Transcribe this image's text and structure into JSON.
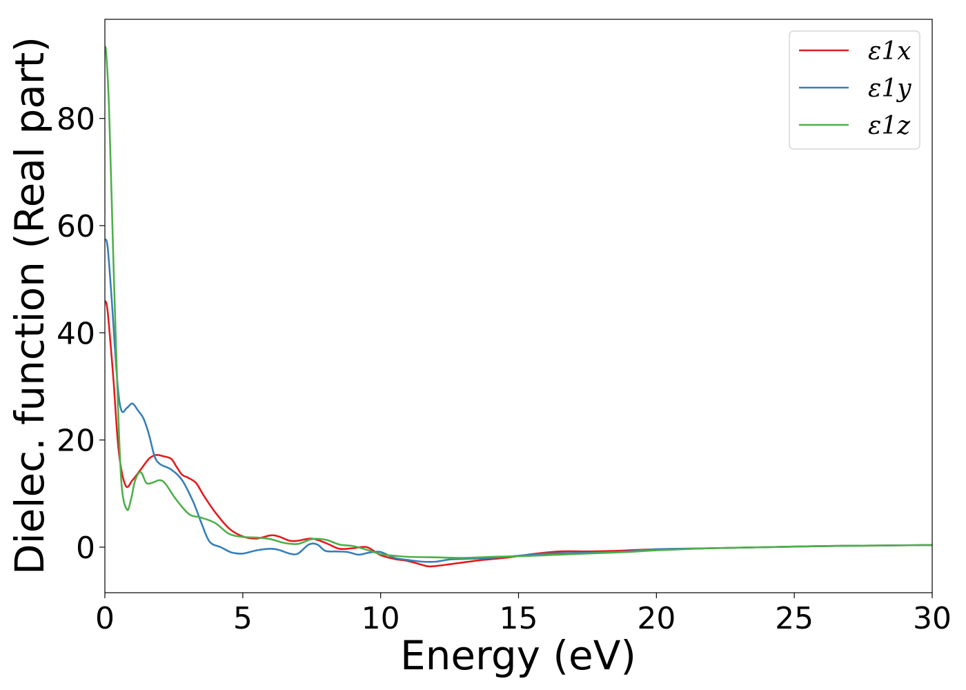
{
  "chart_data": {
    "type": "line",
    "xlabel": "Energy (eV)",
    "ylabel": "Dielec. function (Real part)",
    "xlim": [
      0,
      30
    ],
    "ylim": [
      -8.5,
      98.5
    ],
    "xticks": [
      0,
      5,
      10,
      15,
      20,
      25,
      30
    ],
    "yticks": [
      0,
      20,
      40,
      60,
      80
    ],
    "grid": false,
    "legend": "top-right",
    "series": [
      {
        "name": "ε1x",
        "color": "#e41a1c",
        "x": [
          0,
          0.1,
          0.3,
          0.5,
          0.75,
          1.0,
          1.3,
          1.6,
          1.85,
          2.1,
          2.4,
          2.6,
          2.8,
          3.0,
          3.3,
          3.6,
          4.0,
          4.5,
          5.0,
          5.5,
          6.0,
          6.3,
          6.7,
          7.0,
          7.5,
          8.0,
          8.5,
          9.0,
          9.5,
          10.0,
          10.5,
          11.0,
          11.5,
          11.8,
          12.5,
          13.5,
          14.5,
          15.5,
          16.5,
          17.5,
          18.5,
          20,
          22,
          24,
          26,
          28,
          30
        ],
        "y": [
          46,
          44,
          32,
          18,
          11.5,
          12.5,
          14.5,
          16.5,
          17.2,
          17,
          16.5,
          15,
          13.5,
          13,
          12,
          9.5,
          6.5,
          3.5,
          2,
          1.6,
          2.2,
          2,
          1.2,
          1.2,
          1.6,
          0.8,
          -0.3,
          -0.2,
          0,
          -1.5,
          -2.2,
          -2.6,
          -3.3,
          -3.6,
          -3.2,
          -2.5,
          -2,
          -1.3,
          -0.8,
          -0.8,
          -0.7,
          -0.4,
          -0.2,
          0,
          0.2,
          0.3,
          0.4
        ]
      },
      {
        "name": "ε1y",
        "color": "#377eb8",
        "x": [
          0,
          0.1,
          0.25,
          0.45,
          0.6,
          0.8,
          1.0,
          1.2,
          1.4,
          1.6,
          1.8,
          2.0,
          2.4,
          2.8,
          3.2,
          3.5,
          3.8,
          4.2,
          4.6,
          5.0,
          5.5,
          6.0,
          6.3,
          6.7,
          7.0,
          7.4,
          7.7,
          8.0,
          8.4,
          8.8,
          9.2,
          9.6,
          10.0,
          10.5,
          11.0,
          11.5,
          12.0,
          12.5,
          13.0,
          14.0,
          15.0,
          16.0,
          17.0,
          18.0,
          19.0,
          20,
          22,
          24,
          26,
          28,
          30
        ],
        "y": [
          57.5,
          56,
          46,
          31,
          25.5,
          26,
          26.8,
          25.5,
          24,
          21,
          17,
          15.5,
          14.5,
          12.5,
          8.5,
          4.5,
          1,
          0,
          -1,
          -1.2,
          -0.6,
          -0.3,
          -0.5,
          -1.2,
          -1.2,
          0.5,
          0.5,
          -0.7,
          -0.8,
          -0.9,
          -1.4,
          -1,
          -0.9,
          -2,
          -2.4,
          -2.7,
          -2.7,
          -2.3,
          -2.2,
          -2,
          -1.6,
          -1.2,
          -1.1,
          -1,
          -0.8,
          -0.4,
          -0.2,
          0,
          0.2,
          0.3,
          0.4
        ]
      },
      {
        "name": "ε1z",
        "color": "#4daf4a",
        "x": [
          0,
          0.05,
          0.15,
          0.3,
          0.45,
          0.6,
          0.8,
          0.95,
          1.1,
          1.3,
          1.5,
          1.7,
          2.0,
          2.2,
          2.5,
          2.8,
          3.1,
          3.5,
          4.0,
          4.5,
          5.0,
          5.5,
          6.0,
          6.5,
          7.0,
          7.5,
          8.0,
          8.5,
          9.0,
          9.5,
          10.0,
          10.5,
          11.0,
          12.0,
          13.0,
          14.0,
          15.0,
          16.0,
          17.0,
          18.0,
          19.0,
          20,
          22,
          24,
          26,
          28,
          30
        ],
        "y": [
          93.5,
          92,
          82,
          55,
          30,
          12,
          7,
          9,
          12.5,
          14,
          12,
          12,
          12.5,
          11.8,
          9.5,
          7.5,
          6,
          5.5,
          4.5,
          2.5,
          1.9,
          1.8,
          1.5,
          0.8,
          0.6,
          1.5,
          1.4,
          0.5,
          0.2,
          -0.5,
          -1.3,
          -1.6,
          -1.8,
          -1.9,
          -2,
          -1.8,
          -1.7,
          -1.5,
          -1.3,
          -1.1,
          -0.9,
          -0.6,
          -0.2,
          0,
          0.2,
          0.3,
          0.4
        ]
      }
    ]
  }
}
